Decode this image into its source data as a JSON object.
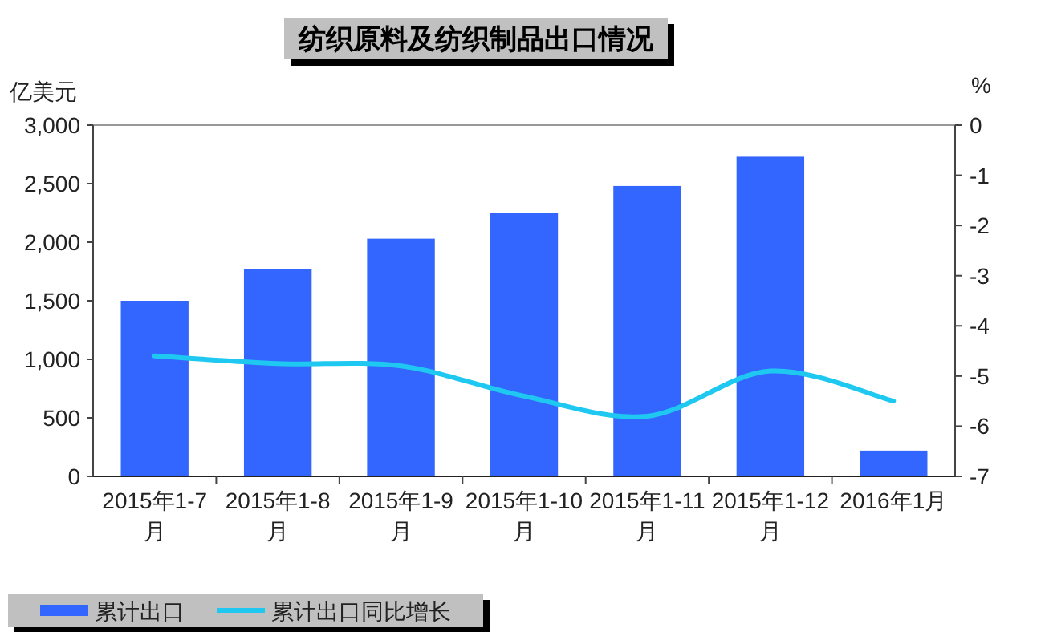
{
  "chart_data": {
    "type": "bar",
    "title": "纺织原料及纺织制品出口情况",
    "ylabel": "亿美元",
    "y2label": "%",
    "categories": [
      "2015年1-7月",
      "2015年1-8月",
      "2015年1-9月",
      "2015年1-10月",
      "2015年1-11月",
      "2015年1-12月",
      "2016年1月"
    ],
    "series": [
      {
        "name": "累计出口",
        "color": "#3366ff",
        "values": [
          1500,
          1770,
          2030,
          2250,
          2480,
          2730,
          220
        ]
      },
      {
        "name": "累计出口同比增长",
        "type": "line",
        "axis": "y2",
        "color": "#1fc8f0",
        "values": [
          -4.6,
          -4.75,
          -4.8,
          -5.4,
          -5.8,
          -4.9,
          -5.5
        ]
      }
    ],
    "ylim": [
      0,
      3000
    ],
    "yticks": [
      0,
      500,
      {
        "value": 1000,
        "label": "1,000"
      },
      {
        "value": 1500,
        "label": "1,500"
      },
      {
        "value": 2000,
        "label": "2,000"
      },
      {
        "value": 2500,
        "label": "2,500"
      },
      {
        "value": 3000,
        "label": "3,000"
      }
    ],
    "y2lim": [
      -7,
      0
    ],
    "y2ticks": [
      -7,
      -6,
      -5,
      -4,
      -3,
      -2,
      -1,
      0
    ],
    "legend": "bottom left"
  }
}
